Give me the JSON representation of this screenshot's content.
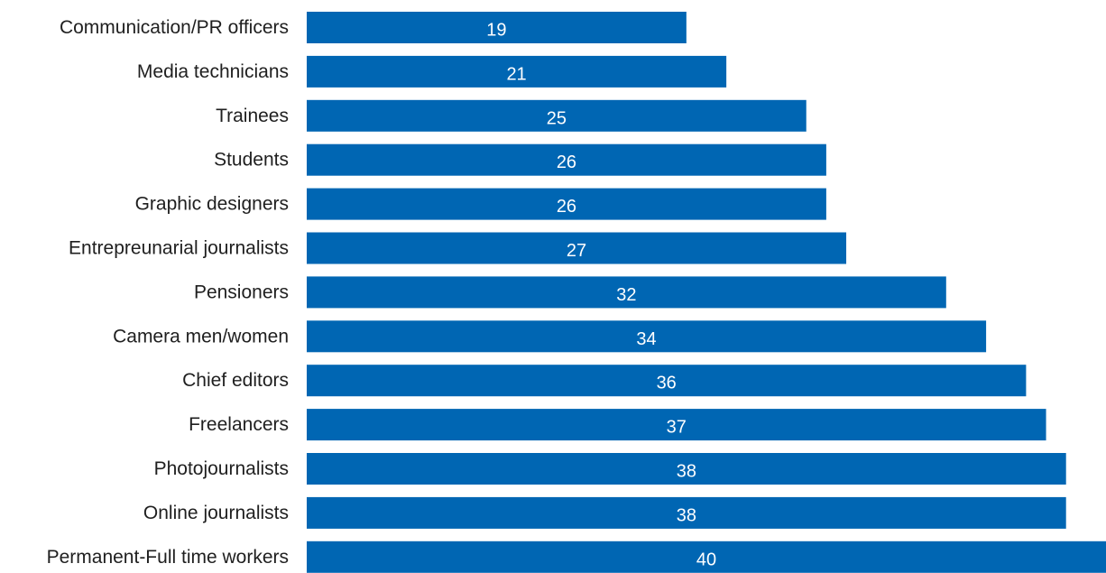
{
  "chart_data": {
    "type": "bar",
    "orientation": "horizontal",
    "categories": [
      "Communication/PR officers",
      "Media technicians",
      "Trainees",
      "Students",
      "Graphic designers",
      "Entrepreunarial journalists",
      "Pensioners",
      "Camera men/women",
      "Chief editors",
      "Freelancers",
      "Photojournalists",
      "Online journalists",
      "Permanent-Full time workers"
    ],
    "values": [
      19,
      21,
      25,
      26,
      26,
      27,
      32,
      34,
      36,
      37,
      38,
      38,
      40
    ],
    "xlim": [
      0,
      40
    ],
    "grid": false,
    "legend": "none",
    "bar_color": "#0066b3",
    "label_color": "#ffffff"
  }
}
